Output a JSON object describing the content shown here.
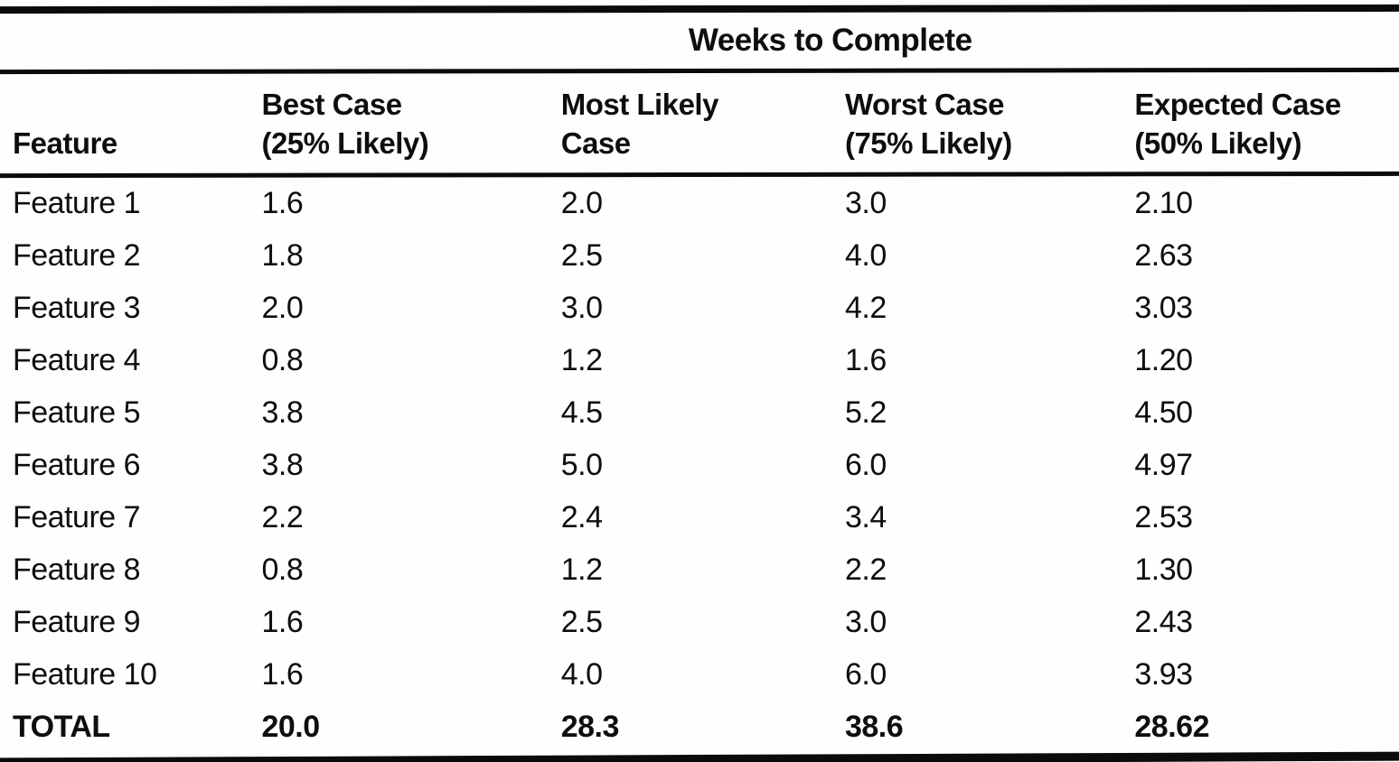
{
  "page": {
    "background": "#fefefe",
    "ink": "#0e0e0e"
  },
  "table": {
    "span_header": "Weeks to Complete",
    "columns": [
      {
        "label": "Feature",
        "sub": ""
      },
      {
        "label": "Best Case",
        "sub": "(25% Likely)"
      },
      {
        "label": "Most Likely",
        "sub": "Case"
      },
      {
        "label": "Worst Case",
        "sub": "(75% Likely)"
      },
      {
        "label": "Expected Case",
        "sub": "(50% Likely)"
      }
    ],
    "rows": [
      [
        "Feature 1",
        "1.6",
        "2.0",
        "3.0",
        "2.10"
      ],
      [
        "Feature 2",
        "1.8",
        "2.5",
        "4.0",
        "2.63"
      ],
      [
        "Feature 3",
        "2.0",
        "3.0",
        "4.2",
        "3.03"
      ],
      [
        "Feature 4",
        "0.8",
        "1.2",
        "1.6",
        "1.20"
      ],
      [
        "Feature 5",
        "3.8",
        "4.5",
        "5.2",
        "4.50"
      ],
      [
        "Feature 6",
        "3.8",
        "5.0",
        "6.0",
        "4.97"
      ],
      [
        "Feature 7",
        "2.2",
        "2.4",
        "3.4",
        "2.53"
      ],
      [
        "Feature 8",
        "0.8",
        "1.2",
        "2.2",
        "1.30"
      ],
      [
        "Feature 9",
        "1.6",
        "2.5",
        "3.0",
        "2.43"
      ],
      [
        "Feature 10",
        "1.6",
        "4.0",
        "6.0",
        "3.93"
      ]
    ],
    "total": [
      "TOTAL",
      "20.0",
      "28.3",
      "38.6",
      "28.62"
    ]
  },
  "chart_data": {
    "type": "table",
    "title": "Weeks to Complete",
    "columns": [
      "Feature",
      "Best Case (25% Likely)",
      "Most Likely Case",
      "Worst Case (75% Likely)",
      "Expected Case (50% Likely)"
    ],
    "rows": [
      [
        "Feature 1",
        1.6,
        2.0,
        3.0,
        2.1
      ],
      [
        "Feature 2",
        1.8,
        2.5,
        4.0,
        2.63
      ],
      [
        "Feature 3",
        2.0,
        3.0,
        4.2,
        3.03
      ],
      [
        "Feature 4",
        0.8,
        1.2,
        1.6,
        1.2
      ],
      [
        "Feature 5",
        3.8,
        4.5,
        5.2,
        4.5
      ],
      [
        "Feature 6",
        3.8,
        5.0,
        6.0,
        4.97
      ],
      [
        "Feature 7",
        2.2,
        2.4,
        3.4,
        2.53
      ],
      [
        "Feature 8",
        0.8,
        1.2,
        2.2,
        1.3
      ],
      [
        "Feature 9",
        1.6,
        2.5,
        3.0,
        2.43
      ],
      [
        "Feature 10",
        1.6,
        4.0,
        6.0,
        3.93
      ]
    ],
    "total_row": [
      "TOTAL",
      20.0,
      28.3,
      38.6,
      28.62
    ]
  }
}
